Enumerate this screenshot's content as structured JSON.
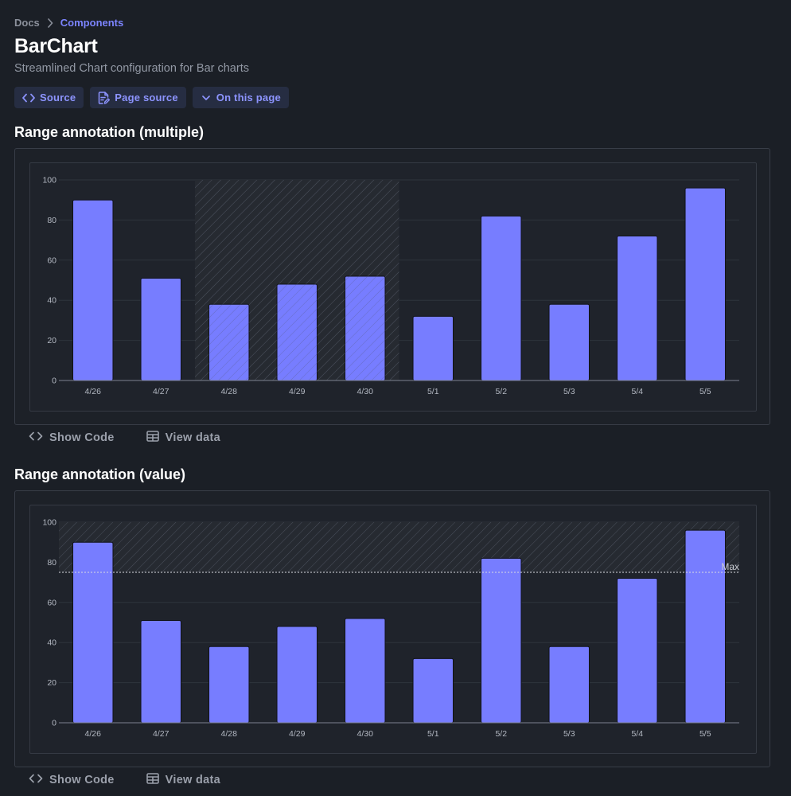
{
  "breadcrumb": {
    "parent": "Docs",
    "current": "Components"
  },
  "header": {
    "title": "BarChart",
    "subtitle": "Streamlined Chart configuration for Bar charts",
    "buttons": {
      "source": "Source",
      "page_source": "Page source",
      "on_this_page": "On this page"
    }
  },
  "colors": {
    "bar": "#777dff",
    "accent": "#7c84ff",
    "grid": "#2f343d",
    "background": "#1b1f26"
  },
  "chart_data": [
    {
      "type": "bar",
      "title": "Range annotation (multiple)",
      "categories": [
        "4/26",
        "4/27",
        "4/28",
        "4/29",
        "4/30",
        "5/1",
        "5/2",
        "5/3",
        "5/4",
        "5/5"
      ],
      "values": [
        90,
        51,
        38,
        48,
        52,
        32,
        82,
        38,
        72,
        96
      ],
      "ylim": [
        0,
        100
      ],
      "yticks": [
        "0",
        "20",
        "40",
        "60",
        "80",
        "100"
      ],
      "grid": true,
      "annotation": {
        "kind": "x-range",
        "from": "4/28",
        "to": "4/30",
        "pattern": "hatched"
      }
    },
    {
      "type": "bar",
      "title": "Range annotation (value)",
      "categories": [
        "4/26",
        "4/27",
        "4/28",
        "4/29",
        "4/30",
        "5/1",
        "5/2",
        "5/3",
        "5/4",
        "5/5"
      ],
      "values": [
        90,
        51,
        38,
        48,
        52,
        32,
        82,
        38,
        72,
        96
      ],
      "ylim": [
        0,
        100
      ],
      "yticks": [
        "0",
        "20",
        "40",
        "60",
        "80",
        "100"
      ],
      "grid": true,
      "annotation": {
        "kind": "y-range",
        "from": 75,
        "to": 100,
        "line_value": 75,
        "label": "Max",
        "pattern": "hatched"
      }
    }
  ],
  "actions": {
    "show_code": "Show Code",
    "view_data": "View data"
  }
}
